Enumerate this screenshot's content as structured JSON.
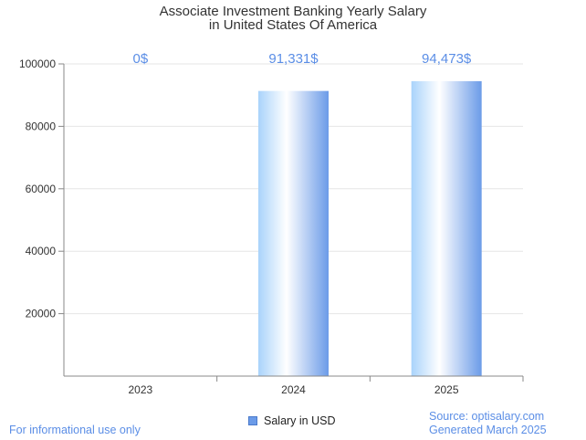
{
  "chart_data": {
    "type": "bar",
    "title": [
      "Associate Investment Banking Yearly Salary",
      "in United States Of America"
    ],
    "categories": [
      "2023",
      "2024",
      "2025"
    ],
    "series": [
      {
        "name": "Salary in USD",
        "values": [
          0,
          91331,
          94473
        ]
      }
    ],
    "data_labels": [
      "0$",
      "91,331$",
      "94,473$"
    ],
    "yticks": [
      "20000",
      "40000",
      "60000",
      "80000",
      "100000"
    ],
    "ytick_values": [
      20000,
      40000,
      60000,
      80000,
      100000
    ],
    "ylim": [
      0,
      100000
    ],
    "grid": true,
    "legend_position": "bottom",
    "colors": {
      "bar_light": "#ffffff",
      "bar_mid": "#cfe6fb",
      "bar_dark": "#6b9be8",
      "label": "#5b8ee6"
    }
  },
  "footer": {
    "left": "For informational use only",
    "source": "Source: optisalary.com",
    "generated": "Generated March 2025"
  }
}
